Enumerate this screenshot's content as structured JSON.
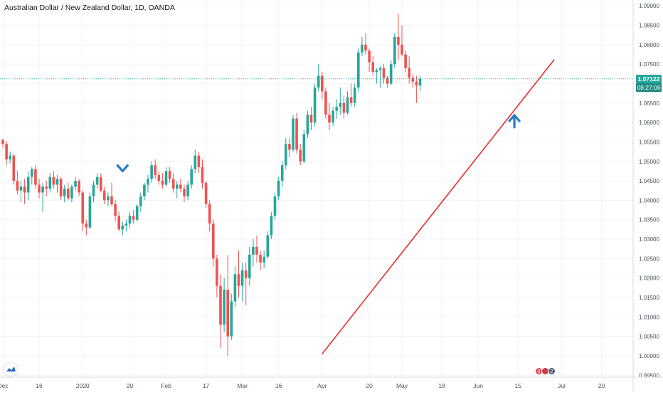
{
  "legend": {
    "title": "Australian Dollar / New Zealand Dollar, 1D, OANDA"
  },
  "price_tag": {
    "value": "1.07122",
    "countdown": "08:27:06",
    "color": "#26a69a"
  },
  "events": [
    {
      "label": "3",
      "kind": "ev-b"
    },
    {
      "label": "",
      "kind": "ev-a"
    },
    {
      "label": "2",
      "kind": "ev-c"
    }
  ],
  "colors": {
    "up": "#26a69a",
    "down": "#ef5350",
    "trendline": "#ef2b2b",
    "arrow": "#2b7cc4",
    "grid": "#f0f3fa",
    "current_price_line": "#26a69a"
  },
  "chart_data": {
    "type": "candlestick",
    "title": "Australian Dollar / New Zealand Dollar, 1D, OANDA",
    "y_axis": {
      "position": "right",
      "ticks": [
        "1.09000",
        "1.08500",
        "1.08000",
        "1.07500",
        "1.07000",
        "1.06500",
        "1.06000",
        "1.05500",
        "1.05000",
        "1.04500",
        "1.04000",
        "1.03500",
        "1.03000",
        "1.02500",
        "1.02000",
        "1.01500",
        "1.01000",
        "1.00500",
        "1.00000",
        "0.99500"
      ],
      "range": [
        0.9945,
        1.0915
      ]
    },
    "x_axis": {
      "ticks": [
        {
          "label": "Dec",
          "day": 0
        },
        {
          "label": "16",
          "day": 10
        },
        {
          "label": "2020",
          "day": 22
        },
        {
          "label": "20",
          "day": 35
        },
        {
          "label": "Feb",
          "day": 45
        },
        {
          "label": "17",
          "day": 56
        },
        {
          "label": "Mar",
          "day": 66
        },
        {
          "label": "16",
          "day": 76
        },
        {
          "label": "Apr",
          "day": 88
        },
        {
          "label": "20",
          "day": 101
        },
        {
          "label": "May",
          "day": 110
        },
        {
          "label": "18",
          "day": 121
        },
        {
          "label": "Jun",
          "day": 131
        },
        {
          "label": "15",
          "day": 142
        },
        {
          "label": "Jul",
          "day": 154
        },
        {
          "label": "20",
          "day": 165
        }
      ]
    },
    "current_price": 1.07122,
    "candles": [
      [
        1.0555,
        1.0558,
        1.0535,
        1.0545
      ],
      [
        1.0545,
        1.0552,
        1.049,
        1.0505
      ],
      [
        1.0505,
        1.0525,
        1.0495,
        1.0515
      ],
      [
        1.0515,
        1.052,
        1.044,
        1.045
      ],
      [
        1.045,
        1.0475,
        1.0415,
        1.0425
      ],
      [
        1.0425,
        1.045,
        1.0395,
        1.0435
      ],
      [
        1.0435,
        1.0455,
        1.039,
        1.042
      ],
      [
        1.042,
        1.0475,
        1.04,
        1.046
      ],
      [
        1.046,
        1.0485,
        1.044,
        1.048
      ],
      [
        1.048,
        1.049,
        1.043,
        1.044
      ],
      [
        1.044,
        1.0455,
        1.0405,
        1.042
      ],
      [
        1.042,
        1.0445,
        1.037,
        1.0435
      ],
      [
        1.0435,
        1.045,
        1.041,
        1.043
      ],
      [
        1.043,
        1.047,
        1.042,
        1.046
      ],
      [
        1.046,
        1.0475,
        1.043,
        1.044
      ],
      [
        1.044,
        1.0465,
        1.042,
        1.0455
      ],
      [
        1.0455,
        1.046,
        1.04,
        1.041
      ],
      [
        1.041,
        1.044,
        1.0395,
        1.043
      ],
      [
        1.043,
        1.0445,
        1.04,
        1.0405
      ],
      [
        1.0405,
        1.044,
        1.0395,
        1.0435
      ],
      [
        1.0435,
        1.046,
        1.0425,
        1.045
      ],
      [
        1.045,
        1.0455,
        1.041,
        1.042
      ],
      [
        1.042,
        1.0425,
        1.032,
        1.034
      ],
      [
        1.034,
        1.035,
        1.031,
        1.033
      ],
      [
        1.033,
        1.042,
        1.0325,
        1.041
      ],
      [
        1.041,
        1.045,
        1.0395,
        1.044
      ],
      [
        1.044,
        1.047,
        1.043,
        1.046
      ],
      [
        1.046,
        1.047,
        1.042,
        1.0425
      ],
      [
        1.0425,
        1.0435,
        1.039,
        1.04
      ],
      [
        1.04,
        1.042,
        1.0385,
        1.041
      ],
      [
        1.041,
        1.0445,
        1.0385,
        1.039
      ],
      [
        1.039,
        1.04,
        1.0345,
        1.036
      ],
      [
        1.036,
        1.037,
        1.032,
        1.0325
      ],
      [
        1.0325,
        1.0345,
        1.031,
        1.0335
      ],
      [
        1.0335,
        1.035,
        1.032,
        1.034
      ],
      [
        1.034,
        1.037,
        1.033,
        1.036
      ],
      [
        1.036,
        1.0375,
        1.034,
        1.035
      ],
      [
        1.035,
        1.039,
        1.0345,
        1.0385
      ],
      [
        1.0385,
        1.042,
        1.037,
        1.041
      ],
      [
        1.041,
        1.0445,
        1.04,
        1.044
      ],
      [
        1.044,
        1.0465,
        1.042,
        1.0455
      ],
      [
        1.0455,
        1.05,
        1.0445,
        1.049
      ],
      [
        1.049,
        1.0505,
        1.0455,
        1.0465
      ],
      [
        1.0465,
        1.0475,
        1.044,
        1.045
      ],
      [
        1.045,
        1.047,
        1.043,
        1.044
      ],
      [
        1.044,
        1.0485,
        1.0435,
        1.0475
      ],
      [
        1.0475,
        1.0485,
        1.0445,
        1.0455
      ],
      [
        1.0455,
        1.047,
        1.042,
        1.043
      ],
      [
        1.043,
        1.045,
        1.0405,
        1.044
      ],
      [
        1.044,
        1.0455,
        1.042,
        1.043
      ],
      [
        1.043,
        1.044,
        1.0395,
        1.041
      ],
      [
        1.041,
        1.045,
        1.04,
        1.044
      ],
      [
        1.044,
        1.049,
        1.043,
        1.048
      ],
      [
        1.048,
        1.053,
        1.047,
        1.0515
      ],
      [
        1.0515,
        1.0525,
        1.047,
        1.0485
      ],
      [
        1.0485,
        1.0505,
        1.043,
        1.0445
      ],
      [
        1.0445,
        1.045,
        1.038,
        1.039
      ],
      [
        1.039,
        1.04,
        1.032,
        1.034
      ],
      [
        1.034,
        1.035,
        1.023,
        1.025
      ],
      [
        1.025,
        1.026,
        1.015,
        1.018
      ],
      [
        1.018,
        1.021,
        1.002,
        1.008
      ],
      [
        1.008,
        1.02,
        1.006,
        1.017
      ],
      [
        1.017,
        1.026,
        1.0,
        1.005
      ],
      [
        1.005,
        1.016,
        1.004,
        1.014
      ],
      [
        1.014,
        1.023,
        1.0125,
        1.021
      ],
      [
        1.021,
        1.027,
        1.015,
        1.018
      ],
      [
        1.018,
        1.024,
        1.014,
        1.022
      ],
      [
        1.022,
        1.024,
        1.013,
        1.02
      ],
      [
        1.02,
        1.028,
        1.018,
        1.026
      ],
      [
        1.026,
        1.03,
        1.023,
        1.028
      ],
      [
        1.028,
        1.031,
        1.024,
        1.026
      ],
      [
        1.026,
        1.027,
        1.022,
        1.024
      ],
      [
        1.024,
        1.027,
        1.0225,
        1.0255
      ],
      [
        1.0255,
        1.032,
        1.025,
        1.031
      ],
      [
        1.031,
        1.037,
        1.03,
        1.036
      ],
      [
        1.036,
        1.042,
        1.035,
        1.041
      ],
      [
        1.041,
        1.046,
        1.04,
        1.045
      ],
      [
        1.045,
        1.05,
        1.0435,
        1.049
      ],
      [
        1.049,
        1.056,
        1.048,
        1.0545
      ],
      [
        1.0545,
        1.056,
        1.051,
        1.053
      ],
      [
        1.053,
        1.062,
        1.0525,
        1.061
      ],
      [
        1.061,
        1.0625,
        1.052,
        1.053
      ],
      [
        1.053,
        1.0545,
        1.049,
        1.05
      ],
      [
        1.05,
        1.058,
        1.0495,
        1.057
      ],
      [
        1.057,
        1.063,
        1.056,
        1.062
      ],
      [
        1.062,
        1.064,
        1.058,
        1.06
      ],
      [
        1.06,
        1.07,
        1.059,
        1.069
      ],
      [
        1.069,
        1.075,
        1.068,
        1.072
      ],
      [
        1.072,
        1.073,
        1.066,
        1.068
      ],
      [
        1.068,
        1.069,
        1.061,
        1.062
      ],
      [
        1.062,
        1.065,
        1.058,
        1.06
      ],
      [
        1.06,
        1.064,
        1.059,
        1.063
      ],
      [
        1.063,
        1.066,
        1.061,
        1.064
      ],
      [
        1.064,
        1.069,
        1.062,
        1.065
      ],
      [
        1.065,
        1.067,
        1.061,
        1.0625
      ],
      [
        1.0625,
        1.068,
        1.062,
        1.0665
      ],
      [
        1.0665,
        1.07,
        1.064,
        1.065
      ],
      [
        1.065,
        1.07,
        1.064,
        1.069
      ],
      [
        1.069,
        1.079,
        1.068,
        1.078
      ],
      [
        1.078,
        1.082,
        1.077,
        1.08
      ],
      [
        1.08,
        1.083,
        1.0775,
        1.0785
      ],
      [
        1.0785,
        1.079,
        1.073,
        1.0755
      ],
      [
        1.0755,
        1.077,
        1.072,
        1.073
      ],
      [
        1.073,
        1.074,
        1.07,
        1.0735
      ],
      [
        1.0735,
        1.0745,
        1.069,
        1.074
      ],
      [
        1.074,
        1.075,
        1.07,
        1.0715
      ],
      [
        1.0715,
        1.072,
        1.069,
        1.07
      ],
      [
        1.07,
        1.076,
        1.0695,
        1.075
      ],
      [
        1.075,
        1.083,
        1.074,
        1.082
      ],
      [
        1.082,
        1.088,
        1.076,
        1.08
      ],
      [
        1.08,
        1.085,
        1.077,
        1.0775
      ],
      [
        1.0775,
        1.0785,
        1.073,
        1.074
      ],
      [
        1.074,
        1.077,
        1.07,
        1.0715
      ],
      [
        1.0715,
        1.0725,
        1.069,
        1.0705
      ],
      [
        1.0705,
        1.072,
        1.065,
        1.0695
      ],
      [
        1.0695,
        1.072,
        1.068,
        1.0712
      ]
    ],
    "annotations": [
      {
        "type": "trendline",
        "from": {
          "day": 88,
          "price": 1.0005
        },
        "to": {
          "day": 152,
          "price": 1.0762
        }
      },
      {
        "type": "arrow-down",
        "day": 33,
        "price": 1.0475
      },
      {
        "type": "arrow-up",
        "day": 141,
        "price": 1.0615
      }
    ]
  }
}
